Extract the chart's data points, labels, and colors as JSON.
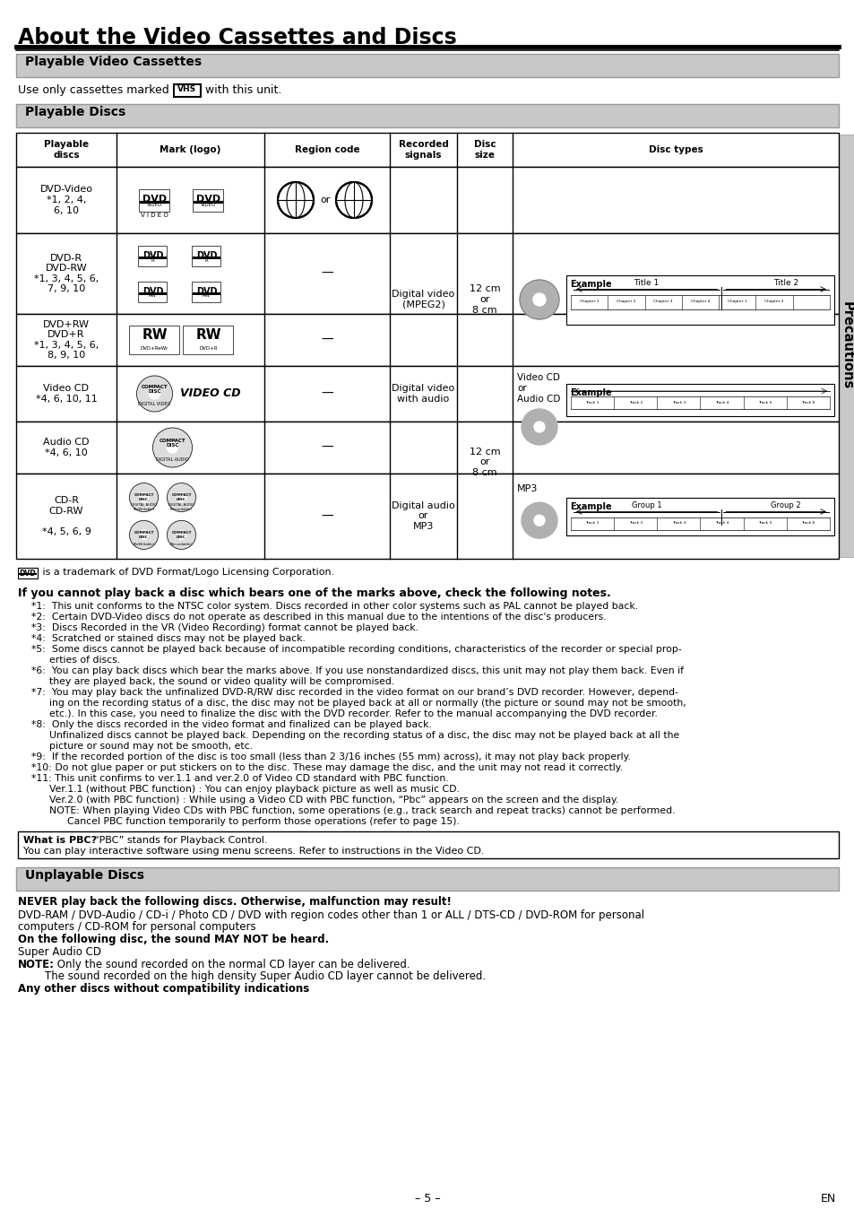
{
  "title": "About the Video Cassettes and Discs",
  "section1_header": "Playable Video Cassettes",
  "section2_header": "Playable Discs",
  "table_headers": [
    "Playable\ndiscs",
    "Mark (logo)",
    "Region code",
    "Recorded\nsignals",
    "Disc\nsize",
    "Disc types"
  ],
  "dvd_note": " is a trademark of DVD Format/Logo Licensing Corporation.",
  "bold_heading": "If you cannot play back a disc which bears one of the marks above, check the following notes.",
  "notes_lines": [
    [
      35,
      "*1:  This unit conforms to the NTSC color system. Discs recorded in other color systems such as PAL cannot be played back."
    ],
    [
      35,
      "*2:  Certain DVD-Video discs do not operate as described in this manual due to the intentions of the disc's producers."
    ],
    [
      35,
      "*3:  Discs Recorded in the VR (Video Recording) format cannot be played back."
    ],
    [
      35,
      "*4:  Scratched or stained discs may not be played back."
    ],
    [
      35,
      "*5:  Some discs cannot be played back because of incompatible recording conditions, characteristics of the recorder or special prop-"
    ],
    [
      55,
      "erties of discs."
    ],
    [
      35,
      "*6:  You can play back discs which bear the marks above. If you use nonstandardized discs, this unit may not play them back. Even if"
    ],
    [
      55,
      "they are played back, the sound or video quality will be compromised."
    ],
    [
      35,
      "*7:  You may play back the unfinalized DVD-R/RW disc recorded in the video format on our brand’s DVD recorder. However, depend-"
    ],
    [
      55,
      "ing on the recording status of a disc, the disc may not be played back at all or normally (the picture or sound may not be smooth,"
    ],
    [
      55,
      "etc.). In this case, you need to finalize the disc with the DVD recorder. Refer to the manual accompanying the DVD recorder."
    ],
    [
      35,
      "*8:  Only the discs recorded in the video format and finalized can be played back."
    ],
    [
      55,
      "Unfinalized discs cannot be played back. Depending on the recording status of a disc, the disc may not be played back at all the"
    ],
    [
      55,
      "picture or sound may not be smooth, etc."
    ],
    [
      35,
      "*9:  If the recorded portion of the disc is too small (less than 2 3/16 inches (55 mm) across), it may not play back properly."
    ],
    [
      35,
      "*10: Do not glue paper or put stickers on to the disc. These may damage the disc, and the unit may not read it correctly."
    ],
    [
      35,
      "*11: This unit confirms to ver.1.1 and ver.2.0 of Video CD standard with PBC function."
    ],
    [
      55,
      "Ver.1.1 (without PBC function) : You can enjoy playback picture as well as music CD."
    ],
    [
      55,
      "Ver.2.0 (with PBC function) : While using a Video CD with PBC function, “Pbc” appears on the screen and the display."
    ],
    [
      55,
      "NOTE: When playing Video CDs with PBC function, some operations (e.g., track search and repeat tracks) cannot be performed."
    ],
    [
      75,
      "Cancel PBC function temporarily to perform those operations (refer to page 15)."
    ]
  ],
  "pbc_bold": "What is PBC?",
  "pbc_text1": "  “PBC” stands for Playback Control.",
  "pbc_text2": "You can play interactive software using menu screens. Refer to instructions in the Video CD.",
  "unplayable_header": "Unplayable Discs",
  "unplayable_bold1": "NEVER play back the following discs. Otherwise, malfunction may result!",
  "unplayable_text2": "DVD-RAM / DVD-Audio / CD-i / Photo CD / DVD with region codes other than 1 or ALL / DTS-CD / DVD-ROM for personal",
  "unplayable_text2b": "computers / CD-ROM for personal computers",
  "unplayable_bold3": "On the following disc, the sound MAY NOT be heard.",
  "unplayable_text4": "Super Audio CD",
  "unplayable_bold5": "NOTE:",
  "unplayable_text5": " Only the sound recorded on the normal CD layer can be delivered.",
  "unplayable_text5b": "        The sound recorded on the high density Super Audio CD layer cannot be delivered.",
  "unplayable_bold6": "Any other discs without compatibility indications",
  "footer_left": "– 5 –",
  "footer_right": "EN",
  "side_text": "Precautions",
  "header_bg": "#c8c8c8",
  "table_header_bg": "#ffffff",
  "disc_gray": "#aaaaaa"
}
